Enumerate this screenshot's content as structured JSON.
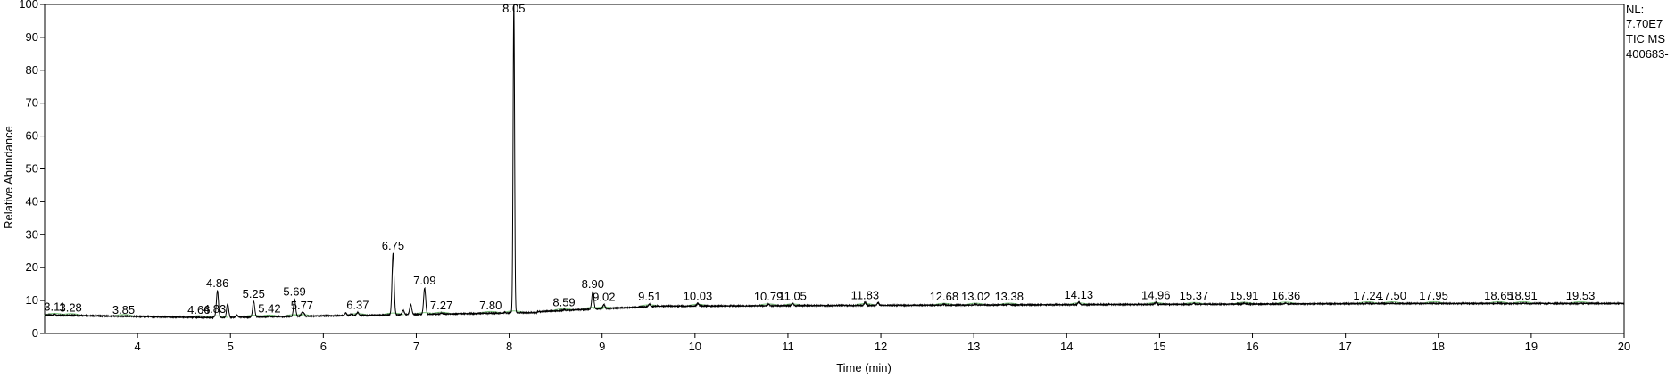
{
  "info": {
    "nl_label": "NL:",
    "nl_value": "7.70E7",
    "scan_label": "TIC  MS",
    "sample": "400683-"
  },
  "chart_data": {
    "type": "line",
    "title": "",
    "xlabel": "Time (min)",
    "ylabel": "Relative Abundance",
    "xlim": [
      3.0,
      20.0
    ],
    "ylim": [
      0,
      100
    ],
    "xticks": [
      4,
      5,
      6,
      7,
      8,
      9,
      10,
      11,
      12,
      13,
      14,
      15,
      16,
      17,
      18,
      19,
      20
    ],
    "yticks": [
      0,
      10,
      20,
      30,
      40,
      50,
      60,
      70,
      80,
      90,
      100
    ],
    "grid": false,
    "line_color": "#000000",
    "baseline_marker_color": "#7fc77f",
    "peaks": [
      {
        "label": "3.11",
        "rt": 3.11,
        "height": 5.8
      },
      {
        "label": "3.28",
        "rt": 3.28,
        "height": 5.5
      },
      {
        "label": "3.85",
        "rt": 3.85,
        "height": 4.9
      },
      {
        "label": "4.66",
        "rt": 4.66,
        "height": 4.9
      },
      {
        "label": "4.83",
        "rt": 4.83,
        "height": 5.1
      },
      {
        "label": "4.86",
        "rt": 4.86,
        "height": 13.0
      },
      {
        "label": "5.25",
        "rt": 5.25,
        "height": 9.8
      },
      {
        "label": "5.42",
        "rt": 5.42,
        "height": 5.3
      },
      {
        "label": "5.69",
        "rt": 5.69,
        "height": 10.4
      },
      {
        "label": "5.77",
        "rt": 5.77,
        "height": 6.2
      },
      {
        "label": "6.37",
        "rt": 6.37,
        "height": 6.4
      },
      {
        "label": "6.75",
        "rt": 6.75,
        "height": 24.4
      },
      {
        "label": "7.09",
        "rt": 7.09,
        "height": 13.8
      },
      {
        "label": "7.27",
        "rt": 7.27,
        "height": 6.2
      },
      {
        "label": "7.80",
        "rt": 7.8,
        "height": 6.2
      },
      {
        "label": "8.05",
        "rt": 8.05,
        "height": 100
      },
      {
        "label": "8.59",
        "rt": 8.59,
        "height": 7.2
      },
      {
        "label": "8.90",
        "rt": 8.9,
        "height": 12.8
      },
      {
        "label": "9.02",
        "rt": 9.02,
        "height": 8.8
      },
      {
        "label": "9.51",
        "rt": 9.51,
        "height": 8.9
      },
      {
        "label": "10.03",
        "rt": 10.03,
        "height": 9.1
      },
      {
        "label": "10.79",
        "rt": 10.79,
        "height": 8.9
      },
      {
        "label": "11.05",
        "rt": 11.05,
        "height": 9.1
      },
      {
        "label": "11.83",
        "rt": 11.83,
        "height": 9.4
      },
      {
        "label": "12.68",
        "rt": 12.68,
        "height": 8.9
      },
      {
        "label": "13.02",
        "rt": 13.02,
        "height": 8.9
      },
      {
        "label": "13.38",
        "rt": 13.38,
        "height": 8.9
      },
      {
        "label": "14.13",
        "rt": 14.13,
        "height": 9.5
      },
      {
        "label": "14.96",
        "rt": 14.96,
        "height": 9.4
      },
      {
        "label": "15.37",
        "rt": 15.37,
        "height": 9.2
      },
      {
        "label": "15.91",
        "rt": 15.91,
        "height": 9.2
      },
      {
        "label": "16.36",
        "rt": 16.36,
        "height": 9.2
      },
      {
        "label": "17.24",
        "rt": 17.24,
        "height": 9.2
      },
      {
        "label": "17.50",
        "rt": 17.5,
        "height": 9.2
      },
      {
        "label": "17.95",
        "rt": 17.95,
        "height": 9.2
      },
      {
        "label": "18.65",
        "rt": 18.65,
        "height": 9.2
      },
      {
        "label": "18.91",
        "rt": 18.91,
        "height": 9.2
      },
      {
        "label": "19.53",
        "rt": 19.53,
        "height": 9.2
      }
    ],
    "unlabeled_peaks": [
      {
        "rt": 4.97,
        "height": 9.0
      },
      {
        "rt": 5.07,
        "height": 5.5
      },
      {
        "rt": 5.79,
        "height": 6.0
      },
      {
        "rt": 5.86,
        "height": 5.2
      },
      {
        "rt": 6.24,
        "height": 6.2
      },
      {
        "rt": 6.3,
        "height": 5.8
      },
      {
        "rt": 6.86,
        "height": 7.0
      },
      {
        "rt": 6.94,
        "height": 8.8
      },
      {
        "rt": 7.45,
        "height": 5.6
      },
      {
        "rt": 7.95,
        "height": 6.5
      },
      {
        "rt": 11.97,
        "height": 9.3
      }
    ]
  }
}
